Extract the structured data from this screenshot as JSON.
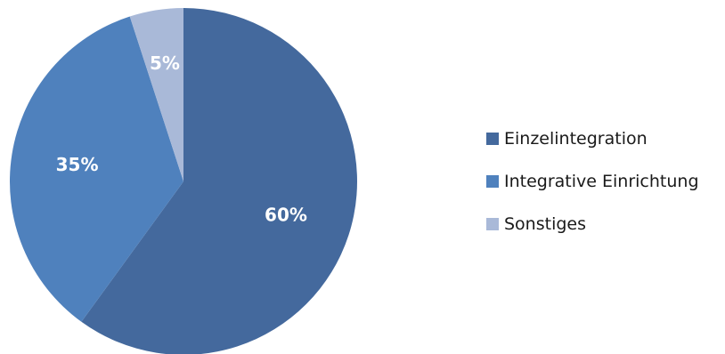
{
  "chart_data": {
    "type": "pie",
    "title": "",
    "categories": [
      "Einzelintegration",
      "Integrative Einrichtung",
      "Sonstiges"
    ],
    "values": [
      60,
      35,
      5
    ],
    "labels": [
      "60%",
      "35%",
      "5%"
    ],
    "colors": [
      "#44699d",
      "#4f81bd",
      "#a9b9d8"
    ],
    "start_angle_deg": 0,
    "direction": "clockwise",
    "legend_position": "right"
  },
  "legend": {
    "items": [
      {
        "label": "Einzelintegration",
        "color": "#44699d"
      },
      {
        "label": "Integrative Einrichtung",
        "color": "#4f81bd"
      },
      {
        "label": "Sonstiges",
        "color": "#a9b9d8"
      }
    ]
  }
}
